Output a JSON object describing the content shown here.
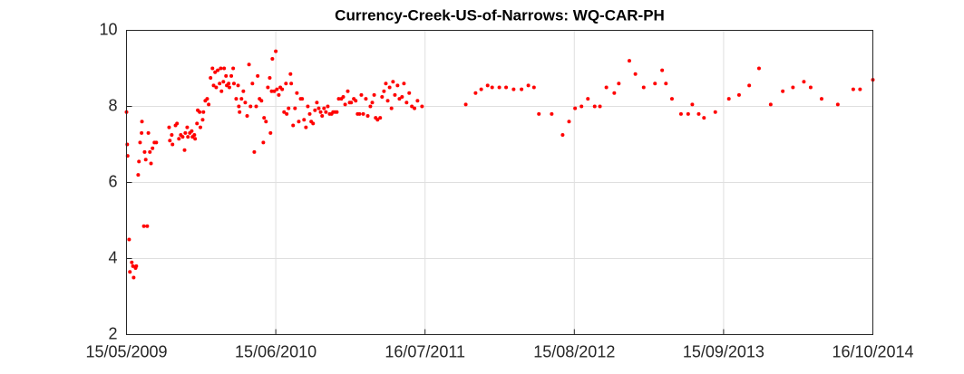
{
  "chart_data": {
    "type": "scatter",
    "title": "Currency-Creek-US-of-Narrows: WQ-CAR-PH",
    "color": "#ff0000",
    "grid": true,
    "xlim": [
      "2009-05-15",
      "2014-10-16"
    ],
    "xticks": [
      {
        "value": "2009-05-15",
        "label": "15/05/2009"
      },
      {
        "value": "2010-06-15",
        "label": "15/06/2010"
      },
      {
        "value": "2011-07-16",
        "label": "16/07/2011"
      },
      {
        "value": "2012-08-15",
        "label": "15/08/2012"
      },
      {
        "value": "2013-09-15",
        "label": "15/09/2013"
      },
      {
        "value": "2014-10-16",
        "label": "16/10/2014"
      }
    ],
    "ylim": [
      2,
      10
    ],
    "yticks": [
      2,
      4,
      6,
      8,
      10
    ],
    "x": [
      "2009-05-15",
      "2009-05-17",
      "2009-05-18",
      "2009-05-22",
      "2009-05-24",
      "2009-05-29",
      "2009-06-01",
      "2009-06-03",
      "2009-06-08",
      "2009-06-10",
      "2009-06-15",
      "2009-06-17",
      "2009-06-20",
      "2009-06-25",
      "2009-06-24",
      "2009-06-30",
      "2009-07-09",
      "2009-07-02",
      "2009-07-05",
      "2009-07-12",
      "2009-07-16",
      "2009-07-19",
      "2009-07-23",
      "2009-07-28",
      "2009-08-02",
      "2009-09-05",
      "2009-09-07",
      "2009-09-12",
      "2009-09-14",
      "2009-09-22",
      "2009-09-26",
      "2009-10-01",
      "2009-10-06",
      "2009-10-11",
      "2009-10-16",
      "2009-10-18",
      "2009-10-23",
      "2009-10-25",
      "2009-10-30",
      "2009-11-04",
      "2009-11-06",
      "2009-11-11",
      "2009-11-13",
      "2009-11-18",
      "2009-11-20",
      "2009-11-25",
      "2009-11-27",
      "2009-12-03",
      "2009-12-05",
      "2009-12-10",
      "2009-12-15",
      "2009-12-19",
      "2009-12-24",
      "2009-12-29",
      "2010-01-01",
      "2010-01-05",
      "2010-01-08",
      "2010-01-12",
      "2010-01-17",
      "2010-01-20",
      "2010-01-22",
      "2010-01-27",
      "2010-01-29",
      "2010-02-03",
      "2010-02-05",
      "2010-02-10",
      "2010-02-12",
      "2010-02-17",
      "2010-02-22",
      "2010-02-24",
      "2010-03-02",
      "2010-03-07",
      "2010-03-09",
      "2010-03-11",
      "2010-03-16",
      "2010-03-21",
      "2010-03-26",
      "2010-03-31",
      "2010-04-05",
      "2010-04-09",
      "2010-04-14",
      "2010-04-19",
      "2010-04-24",
      "2010-04-28",
      "2010-05-03",
      "2010-05-08",
      "2010-05-13",
      "2010-05-15",
      "2010-05-20",
      "2010-05-25",
      "2010-05-30",
      "2010-06-01",
      "2010-06-04",
      "2010-06-06",
      "2010-06-11",
      "2010-06-15",
      "2010-06-18",
      "2010-06-23",
      "2010-06-27",
      "2010-07-02",
      "2010-07-07",
      "2010-07-12",
      "2010-07-14",
      "2010-07-19",
      "2010-07-24",
      "2010-07-26",
      "2010-07-31",
      "2010-08-05",
      "2010-08-10",
      "2010-08-15",
      "2010-08-20",
      "2010-08-24",
      "2010-08-29",
      "2010-09-03",
      "2010-09-08",
      "2010-09-13",
      "2010-09-17",
      "2010-09-22",
      "2010-09-27",
      "2010-10-02",
      "2010-10-07",
      "2010-10-12",
      "2010-10-16",
      "2010-10-21",
      "2010-10-26",
      "2010-10-31",
      "2010-11-05",
      "2010-11-10",
      "2010-11-14",
      "2010-11-19",
      "2010-11-24",
      "2010-11-29",
      "2010-12-06",
      "2010-12-11",
      "2010-12-16",
      "2010-12-23",
      "2010-12-28",
      "2011-01-01",
      "2011-01-08",
      "2011-01-13",
      "2011-01-18",
      "2011-01-23",
      "2011-01-28",
      "2011-02-02",
      "2011-02-09",
      "2011-02-14",
      "2011-02-21",
      "2011-02-26",
      "2011-03-03",
      "2011-03-07",
      "2011-03-12",
      "2011-03-19",
      "2011-03-24",
      "2011-03-29",
      "2011-04-03",
      "2011-04-08",
      "2011-04-13",
      "2011-04-18",
      "2011-04-22",
      "2011-04-27",
      "2011-05-04",
      "2011-05-09",
      "2011-05-16",
      "2011-05-21",
      "2011-05-28",
      "2011-06-04",
      "2011-06-11",
      "2011-06-18",
      "2011-06-26",
      "2011-07-08",
      "2011-11-01",
      "2011-11-27",
      "2011-12-12",
      "2011-12-29",
      "2012-01-10",
      "2012-01-29",
      "2012-02-16",
      "2012-03-07",
      "2012-03-28",
      "2012-04-15",
      "2012-04-30",
      "2012-05-13",
      "2012-06-16",
      "2012-07-15",
      "2012-08-01",
      "2012-08-17",
      "2012-09-03",
      "2012-09-20",
      "2012-10-08",
      "2012-10-22",
      "2012-11-08",
      "2012-11-29",
      "2012-12-11",
      "2013-01-08",
      "2013-01-24",
      "2013-02-15",
      "2013-03-17",
      "2013-04-05",
      "2013-04-15",
      "2013-05-01",
      "2013-05-25",
      "2013-06-13",
      "2013-06-24",
      "2013-07-11",
      "2013-07-25",
      "2013-08-24",
      "2013-09-29",
      "2013-10-26",
      "2013-11-22",
      "2013-12-18",
      "2014-01-18",
      "2014-02-19",
      "2014-03-18",
      "2014-04-16",
      "2014-05-04",
      "2014-06-02",
      "2014-07-15",
      "2014-08-25",
      "2014-09-12",
      "2014-10-16"
    ],
    "values": [
      7.85,
      7.0,
      6.7,
      4.5,
      3.65,
      3.9,
      3.8,
      3.5,
      3.75,
      3.8,
      6.2,
      6.55,
      7.05,
      7.6,
      7.3,
      4.85,
      4.85,
      6.8,
      6.6,
      7.3,
      6.8,
      6.5,
      6.9,
      7.05,
      7.05,
      7.45,
      7.1,
      7.25,
      7.0,
      7.5,
      7.55,
      7.15,
      7.25,
      7.2,
      6.85,
      7.3,
      7.45,
      7.2,
      7.3,
      7.35,
      7.2,
      7.25,
      7.15,
      7.55,
      7.9,
      7.85,
      7.45,
      7.65,
      7.85,
      8.15,
      8.2,
      8.05,
      8.75,
      9.0,
      8.55,
      8.9,
      8.5,
      8.95,
      8.6,
      9.0,
      8.4,
      8.65,
      9.0,
      8.8,
      8.55,
      8.6,
      8.5,
      8.8,
      9.0,
      8.6,
      8.2,
      8.55,
      8.0,
      7.85,
      8.2,
      8.4,
      8.1,
      7.75,
      9.1,
      8.0,
      8.6,
      6.8,
      8.0,
      8.8,
      8.2,
      8.15,
      7.05,
      7.7,
      7.6,
      8.5,
      8.75,
      7.3,
      8.4,
      9.25,
      8.4,
      9.45,
      8.45,
      8.3,
      8.5,
      8.45,
      7.85,
      8.6,
      7.8,
      7.95,
      8.85,
      8.6,
      7.5,
      7.95,
      8.35,
      7.6,
      8.2,
      8.2,
      7.65,
      7.45,
      8.0,
      7.8,
      7.6,
      7.55,
      7.9,
      8.1,
      7.95,
      7.85,
      7.75,
      7.95,
      7.85,
      8.0,
      7.8,
      7.8,
      7.85,
      7.85,
      7.85,
      8.2,
      8.2,
      8.25,
      8.05,
      8.4,
      8.1,
      8.1,
      8.2,
      8.15,
      7.8,
      7.8,
      8.3,
      7.8,
      8.2,
      7.75,
      8.0,
      8.1,
      8.3,
      7.7,
      7.65,
      7.7,
      8.25,
      8.4,
      8.6,
      8.15,
      8.5,
      7.95,
      8.65,
      8.3,
      8.55,
      8.2,
      8.25,
      8.6,
      8.1,
      8.35,
      8.0,
      7.95,
      8.15,
      8.0,
      8.05,
      8.35,
      8.45,
      8.55,
      8.5,
      8.5,
      8.5,
      8.45,
      8.45,
      8.55,
      8.5,
      7.8,
      7.8,
      7.25,
      7.6,
      7.95,
      8.0,
      8.2,
      8.0,
      8.0,
      8.5,
      8.35,
      8.6,
      9.2,
      8.85,
      8.5,
      8.6,
      8.95,
      8.6,
      8.2,
      7.8,
      7.8,
      8.05,
      7.8,
      7.7,
      7.85,
      8.2,
      8.3,
      8.55,
      9.0,
      8.05,
      8.4,
      8.5,
      8.65,
      8.5,
      8.2,
      8.05,
      8.45,
      8.45,
      8.7
    ]
  }
}
